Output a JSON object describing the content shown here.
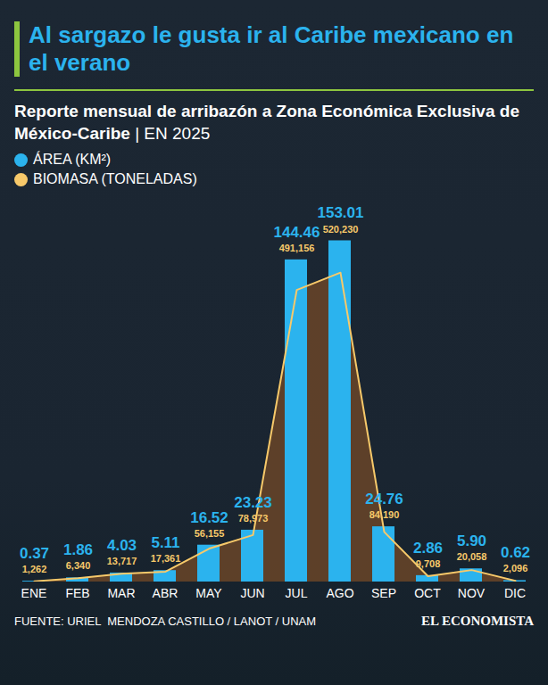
{
  "chart_data": {
    "type": "bar",
    "title": "Al sargazo le gusta ir al Caribe mexicano en el verano",
    "subtitle": "Reporte mensual de arribazón a Zona Económica Exclusiva de México-Caribe | EN 2025",
    "source": "FUENTE: URIEL  MENDOZA CASTILLO / LANOT / UNAM",
    "credit": "EL ECONOMISTA",
    "categories": [
      "ENE",
      "FEB",
      "MAR",
      "ABR",
      "MAY",
      "JUN",
      "JUL",
      "AGO",
      "SEP",
      "OCT",
      "NOV",
      "DIC"
    ],
    "series": [
      {
        "name": "ÁREA (KM²)",
        "type": "bar",
        "color": "#2bb3ee",
        "values": [
          0.37,
          1.86,
          4.03,
          5.11,
          16.52,
          23.23,
          144.46,
          153.01,
          24.76,
          2.86,
          5.9,
          0.62
        ],
        "value_labels": [
          "0.37",
          "1.86",
          "4.03",
          "5.11",
          "16.52",
          "23.23",
          "144.46",
          "153.01",
          "24.76",
          "2.86",
          "5.90",
          "0.62"
        ]
      },
      {
        "name": "BIOMASA (TONELADAS)",
        "type": "line",
        "axis": "y2",
        "color": "#f7c96a",
        "values": [
          1262,
          6340,
          13717,
          17361,
          56155,
          78973,
          491156,
          520230,
          84190,
          9708,
          20058,
          2096
        ],
        "value_labels": [
          "1,262",
          "6,340",
          "13,717",
          "17,361",
          "56,155",
          "78,973",
          "491,156",
          "520,230",
          "84,190",
          "9,708",
          "20,058",
          "2,096"
        ]
      }
    ],
    "ylim": [
      0,
      160
    ],
    "y2lim": [
      0,
      600000
    ],
    "grid": false,
    "legend": "top-left",
    "data_labels": true,
    "tick_labels": "x"
  }
}
